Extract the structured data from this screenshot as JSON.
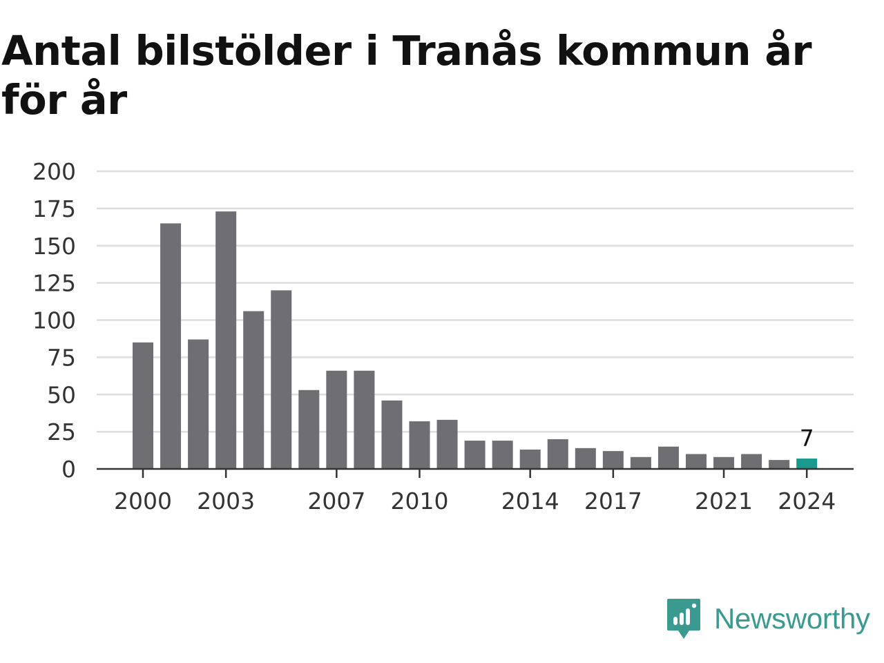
{
  "chart_data": {
    "type": "bar",
    "title": "Antal bilstölder i Tranås kommun år för år",
    "categories": [
      "2000",
      "2001",
      "2002",
      "2003",
      "2004",
      "2005",
      "2006",
      "2007",
      "2008",
      "2009",
      "2010",
      "2011",
      "2012",
      "2013",
      "2014",
      "2015",
      "2016",
      "2017",
      "2018",
      "2019",
      "2020",
      "2021",
      "2022",
      "2023",
      "2024"
    ],
    "values": [
      85,
      165,
      87,
      173,
      106,
      120,
      53,
      66,
      66,
      46,
      32,
      33,
      19,
      19,
      13,
      20,
      14,
      12,
      8,
      15,
      10,
      8,
      10,
      6,
      7
    ],
    "xticks": [
      "2000",
      "2003",
      "2007",
      "2010",
      "2014",
      "2017",
      "2021",
      "2024"
    ],
    "yticks": [
      "0",
      "25",
      "50",
      "75",
      "100",
      "125",
      "150",
      "175",
      "200"
    ],
    "ylim": [
      0,
      200
    ],
    "grid": true,
    "legend": "none",
    "highlight": {
      "category": "2024",
      "label": "7"
    },
    "colors": {
      "bar": "#6e6e73",
      "highlight": "#1a9a8f",
      "grid": "#dddddd",
      "axis": "#333333"
    }
  },
  "branding": {
    "name": "Newsworthy",
    "icon": "newsworthy-bar-chart-logo-icon",
    "color": "#3a9a8f"
  }
}
